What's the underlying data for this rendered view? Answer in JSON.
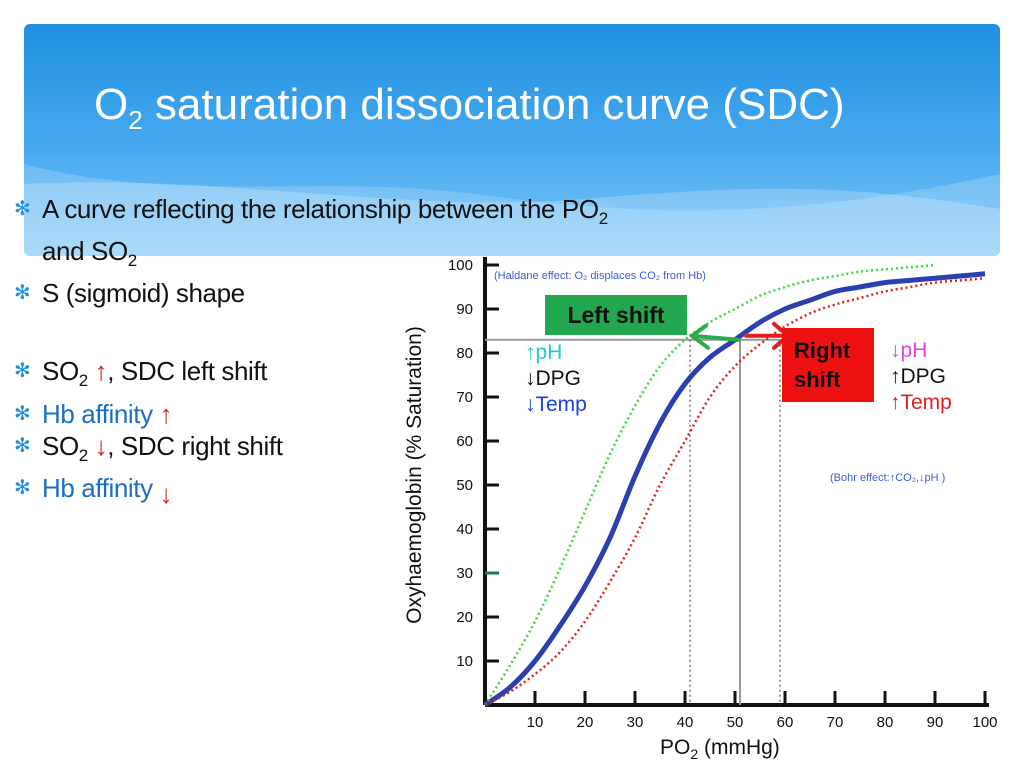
{
  "slide": {
    "title_main": "O",
    "title_sub": "2",
    "title_rest": " saturation dissociation curve (SDC)"
  },
  "bullets": {
    "b1_line1": "A curve reflecting the relationship between the PO",
    "b1_sub1": "2",
    "b1_line2": "and SO",
    "b1_sub2": "2",
    "b2": "S (sigmoid) shape",
    "b3_pre": "SO",
    "b3_sub": "2",
    "b3_post": ",  SDC left shift",
    "b4": "Hb affinity",
    "b5_pre": "SO",
    "b5_sub": "2",
    "b5_post": ", SDC right shift",
    "b6": "Hb affinity"
  },
  "annotations": {
    "left_shift": "Left shift",
    "right_shift_1": "Right",
    "right_shift_2": "shift",
    "left_factors": [
      "pH",
      "DPG",
      "Temp"
    ],
    "right_factors": [
      "pH",
      "DPG",
      "Temp"
    ],
    "haldane_note": "(Haldane effect: O₂ displaces CO₂ from Hb)",
    "bohr_note_pre": "(Bohr effect:",
    "bohr_note_co2": "CO₂,",
    "bohr_note_ph": "pH )"
  },
  "colors": {
    "accent": "#1e8fe0",
    "normal_curve": "#2a3fb0",
    "left_curve": "#33dd33",
    "right_curve": "#e02020",
    "arrow_red": "#e0201a",
    "cyan": "#1ec8d8",
    "magenta": "#e040e0",
    "green_box": "#22a64e",
    "red_box": "#ee1111"
  },
  "chart_data": {
    "type": "line",
    "xlabel": "PO₂ (mmHg)",
    "ylabel": "Oxyhaemoglobin (% Saturation)",
    "xlim": [
      0,
      100
    ],
    "ylim": [
      0,
      100
    ],
    "x_ticks": [
      10,
      20,
      30,
      40,
      50,
      60,
      70,
      80,
      90,
      100
    ],
    "y_ticks": [
      10,
      20,
      30,
      40,
      50,
      60,
      70,
      80,
      90,
      100
    ],
    "grid": false,
    "series": [
      {
        "style": "solid",
        "color": "#2a3fb0",
        "x": [
          0,
          5,
          10,
          15,
          20,
          25,
          30,
          35,
          40,
          45,
          50,
          55,
          60,
          65,
          70,
          75,
          80,
          85,
          90,
          95,
          100
        ],
        "y": [
          0,
          4,
          10,
          18,
          27,
          38,
          52,
          64,
          73,
          79,
          83,
          87,
          90,
          92,
          94,
          95,
          96,
          96.5,
          97,
          97.5,
          98
        ]
      },
      {
        "style": "dotted",
        "color": "#33dd33",
        "x": [
          0,
          5,
          10,
          15,
          20,
          25,
          30,
          35,
          40,
          45,
          50,
          55,
          60,
          65,
          70,
          75,
          80,
          85,
          90
        ],
        "y": [
          0,
          9,
          19,
          31,
          44,
          57,
          68,
          77,
          83,
          87,
          90,
          93,
          95,
          96.5,
          97.5,
          98.5,
          99,
          99.5,
          100
        ]
      },
      {
        "style": "dotted",
        "color": "#e02020",
        "x": [
          0,
          5,
          10,
          15,
          20,
          25,
          30,
          35,
          40,
          45,
          50,
          55,
          60,
          65,
          70,
          75,
          80,
          85,
          90,
          95,
          100
        ],
        "y": [
          0,
          3,
          7,
          12,
          19,
          28,
          38,
          50,
          60,
          70,
          77,
          82,
          86,
          89,
          91,
          92.5,
          94,
          95,
          96,
          96.5,
          97
        ]
      }
    ],
    "reference_lines": [
      {
        "x": 41,
        "y": 83
      },
      {
        "x": 51,
        "y": 83
      },
      {
        "x": 59,
        "y": 83
      }
    ]
  }
}
